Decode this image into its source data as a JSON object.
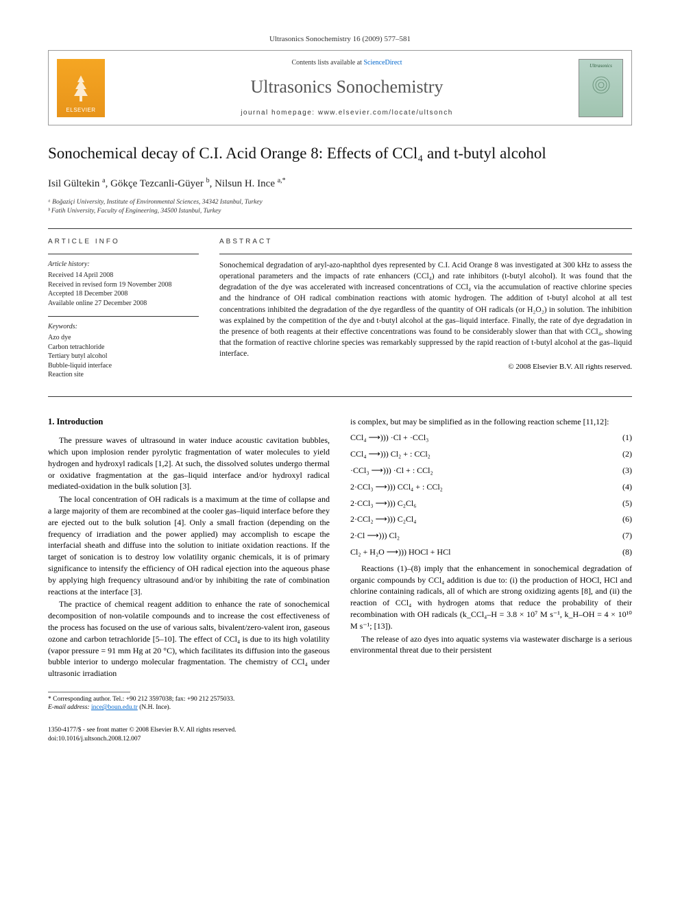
{
  "header": {
    "citation": "Ultrasonics Sonochemistry 16 (2009) 577–581",
    "contents_prefix": "Contents lists available at",
    "contents_link": "ScienceDirect",
    "journal_name": "Ultrasonics Sonochemistry",
    "homepage_label": "journal homepage: www.elsevier.com/locate/ultsonch",
    "publisher": "ELSEVIER",
    "cover_title": "Ultrasonics"
  },
  "article": {
    "title": "Sonochemical decay of C.I. Acid Orange 8: Effects of CCl₄ and t-butyl alcohol",
    "authors_html": "Isil Gültekin <sup>a</sup>, Gökçe Tezcanli-Güyer <sup>b</sup>, Nilsun H. Ince <sup>a,*</sup>",
    "affiliations": [
      "ᵃ Boğaziçi University, Institute of Environmental Sciences, 34342 Istanbul, Turkey",
      "ᵇ Fatih University, Faculty of Engineering, 34500 Istanbul, Turkey"
    ]
  },
  "info": {
    "label": "ARTICLE INFO",
    "history_head": "Article history:",
    "history": [
      "Received 14 April 2008",
      "Received in revised form 19 November 2008",
      "Accepted 18 December 2008",
      "Available online 27 December 2008"
    ],
    "keywords_head": "Keywords:",
    "keywords": [
      "Azo dye",
      "Carbon tetrachloride",
      "Tertiary butyl alcohol",
      "Bubble-liquid interface",
      "Reaction site"
    ]
  },
  "abstract": {
    "label": "ABSTRACT",
    "text": "Sonochemical degradation of aryl-azo-naphthol dyes represented by C.I. Acid Orange 8 was investigated at 300 kHz to assess the operational parameters and the impacts of rate enhancers (CCl₄) and rate inhibitors (t-butyl alcohol). It was found that the degradation of the dye was accelerated with increased concentrations of CCl₄ via the accumulation of reactive chlorine species and the hindrance of OH radical combination reactions with atomic hydrogen. The addition of t-butyl alcohol at all test concentrations inhibited the degradation of the dye regardless of the quantity of OH radicals (or H₂O₂) in solution. The inhibition was explained by the competition of the dye and t-butyl alcohol at the gas–liquid interface. Finally, the rate of dye degradation in the presence of both reagents at their effective concentrations was found to be considerably slower than that with CCl₄, showing that the formation of reactive chlorine species was remarkably suppressed by the rapid reaction of t-butyl alcohol at the gas–liquid interface.",
    "copyright": "© 2008 Elsevier B.V. All rights reserved."
  },
  "body": {
    "intro_head": "1. Introduction",
    "para1": "The pressure waves of ultrasound in water induce acoustic cavitation bubbles, which upon implosion render pyrolytic fragmentation of water molecules to yield hydrogen and hydroxyl radicals [1,2]. At such, the dissolved solutes undergo thermal or oxidative fragmentation at the gas–liquid interface and/or hydroxyl radical mediated-oxidation in the bulk solution [3].",
    "para2": "The local concentration of OH radicals is a maximum at the time of collapse and a large majority of them are recombined at the cooler gas–liquid interface before they are ejected out to the bulk solution [4]. Only a small fraction (depending on the frequency of irradiation and the power applied) may accomplish to escape the interfacial sheath and diffuse into the solution to initiate oxidation reactions. If the target of sonication is to destroy low volatility organic chemicals, it is of primary significance to intensify the efficiency of OH radical ejection into the aqueous phase by applying high frequency ultrasound and/or by inhibiting the rate of combination reactions at the interface [3].",
    "para3": "The practice of chemical reagent addition to enhance the rate of sonochemical decomposition of non-volatile compounds and to increase the cost effectiveness of the process has focused on the use of various salts, bivalent/zero-valent iron, gaseous ozone and carbon tetrachloride [5–10]. The effect of CCl₄ is due to its high volatility (vapor pressure = 91 mm Hg at 20 °C), which facilitates its diffusion into the gaseous bubble interior to undergo molecular fragmentation. The chemistry of CCl₄ under ultrasonic irradiation",
    "col2_intro": "is complex, but may be simplified as in the following reaction scheme [11,12]:",
    "equations": [
      {
        "lhs": "CCl₄ ⟶))) ·Cl + ·CCl₃",
        "num": "(1)"
      },
      {
        "lhs": "CCl₄ ⟶))) Cl₂ + : CCl₂",
        "num": "(2)"
      },
      {
        "lhs": "·CCl₃ ⟶))) ·Cl + : CCl₂",
        "num": "(3)"
      },
      {
        "lhs": "2·CCl₃ ⟶))) CCl₄ + : CCl₂",
        "num": "(4)"
      },
      {
        "lhs": "2·CCl₃ ⟶))) C₂Cl₆",
        "num": "(5)"
      },
      {
        "lhs": "2·CCl₂ ⟶))) C₂Cl₄",
        "num": "(6)"
      },
      {
        "lhs": "2·Cl ⟶))) Cl₂",
        "num": "(7)"
      },
      {
        "lhs": "Cl₂ + H₂O ⟶))) HOCl + HCl",
        "num": "(8)"
      }
    ],
    "para4": "Reactions (1)–(8) imply that the enhancement in sonochemical degradation of organic compounds by CCl₄ addition is due to: (i) the production of HOCl, HCl and chlorine containing radicals, all of which are strong oxidizing agents [8], and (ii) the reaction of CCl₄ with hydrogen atoms that reduce the probability of their recombination with OH radicals (k_CCl₄–H = 3.8 × 10⁷ M s⁻¹, k_H–OH = 4 × 10¹⁰ M s⁻¹; [13]).",
    "para5": "The release of azo dyes into aquatic systems via wastewater discharge is a serious environmental threat due to their persistent"
  },
  "footnote": {
    "corr": "* Corresponding author. Tel.: +90 212 3597038; fax: +90 212 2575033.",
    "email_label": "E-mail address:",
    "email": "ince@boun.edu.tr",
    "email_suffix": "(N.H. Ince)."
  },
  "footer": {
    "left": "1350-4177/$ - see front matter © 2008 Elsevier B.V. All rights reserved.",
    "doi": "doi:10.1016/j.ultsonch.2008.12.007"
  },
  "colors": {
    "link": "#0066cc",
    "text": "#000000",
    "publisher_bg": "#f5a623",
    "cover_bg": "#b8d4c8"
  }
}
